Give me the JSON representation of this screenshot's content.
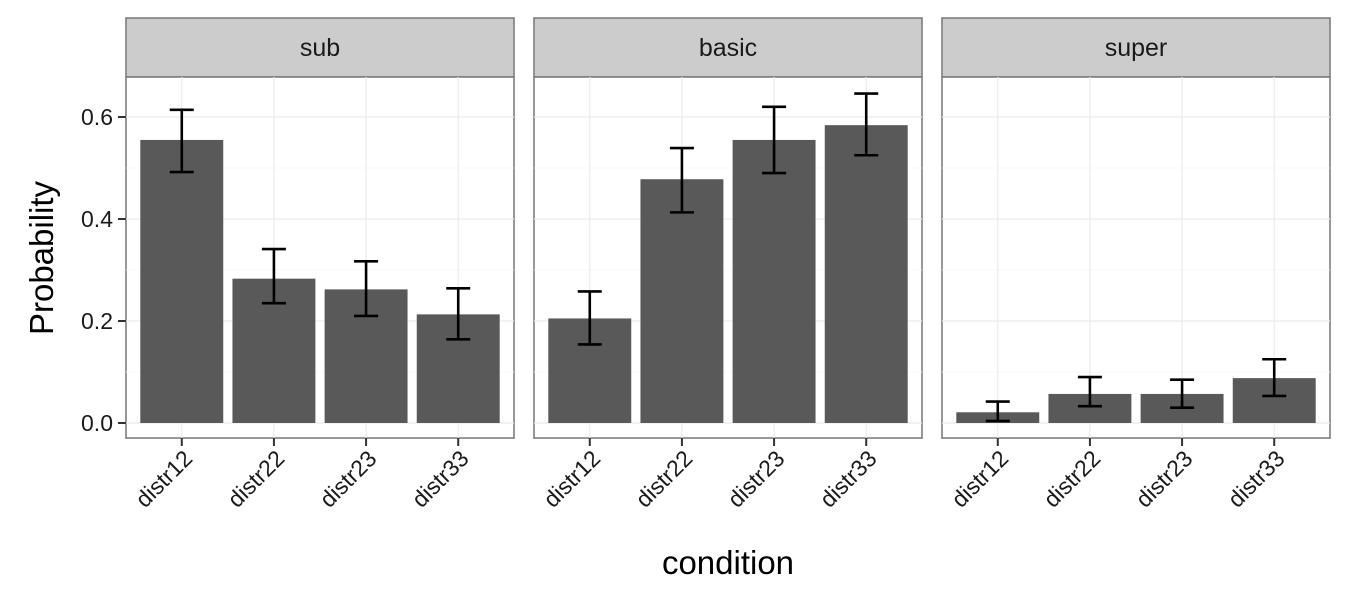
{
  "chart_data": {
    "type": "bar",
    "xlabel": "condition",
    "ylabel": "Probability",
    "ylim": [
      0,
      0.68
    ],
    "yticks": [
      "0.0",
      "0.2",
      "0.4",
      "0.6"
    ],
    "ytick_values": [
      0.0,
      0.2,
      0.4,
      0.6
    ],
    "categories": [
      "distr12",
      "distr22",
      "distr23",
      "distr33"
    ],
    "grid": true,
    "facets": [
      {
        "label": "sub",
        "values": [
          0.555,
          0.283,
          0.262,
          0.213
        ],
        "error_low": [
          0.492,
          0.235,
          0.21,
          0.164
        ],
        "error_high": [
          0.614,
          0.341,
          0.317,
          0.264
        ]
      },
      {
        "label": "basic",
        "values": [
          0.205,
          0.478,
          0.555,
          0.584
        ],
        "error_low": [
          0.154,
          0.413,
          0.49,
          0.525
        ],
        "error_high": [
          0.258,
          0.539,
          0.62,
          0.646
        ]
      },
      {
        "label": "super",
        "values": [
          0.021,
          0.057,
          0.057,
          0.088
        ],
        "error_low": [
          0.004,
          0.033,
          0.03,
          0.053
        ],
        "error_high": [
          0.042,
          0.09,
          0.085,
          0.125
        ]
      }
    ],
    "colors": {
      "bar": "#595959",
      "strip": "#cccccc",
      "panel_border": "#7f7f7f"
    }
  }
}
